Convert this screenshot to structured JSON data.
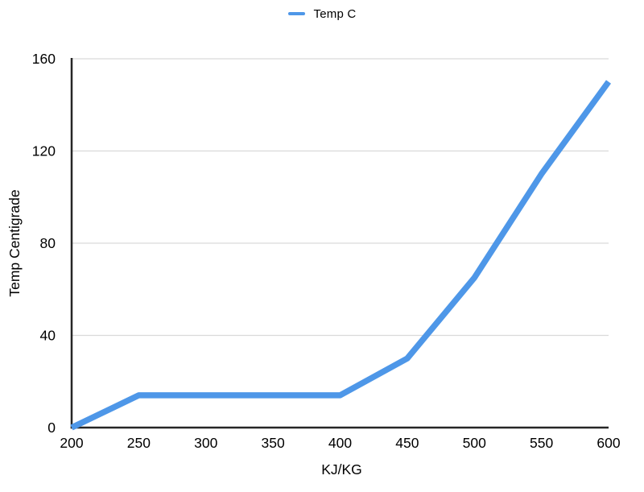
{
  "legend": {
    "label": "Temp C"
  },
  "colors": {
    "line": "#4E97E8",
    "grid": "#D9D9D9",
    "axis": "#262626",
    "text": "#000000",
    "background": "#FFFFFF"
  },
  "chart_data": {
    "type": "line",
    "title": "",
    "x": [
      200,
      250,
      300,
      350,
      400,
      450,
      500,
      550,
      600
    ],
    "series": [
      {
        "name": "Temp C",
        "values": [
          0,
          14,
          14,
          14,
          14,
          30,
          65,
          110,
          150
        ]
      }
    ],
    "xlabel": "KJ/KG",
    "ylabel": "Temp Centigrade",
    "xlim": [
      200,
      600
    ],
    "ylim": [
      0,
      160
    ],
    "x_ticks": [
      200,
      250,
      300,
      350,
      400,
      450,
      500,
      550,
      600
    ],
    "y_ticks": [
      0,
      40,
      80,
      120,
      160
    ],
    "grid": "horizontal",
    "legend_position": "top-center"
  }
}
